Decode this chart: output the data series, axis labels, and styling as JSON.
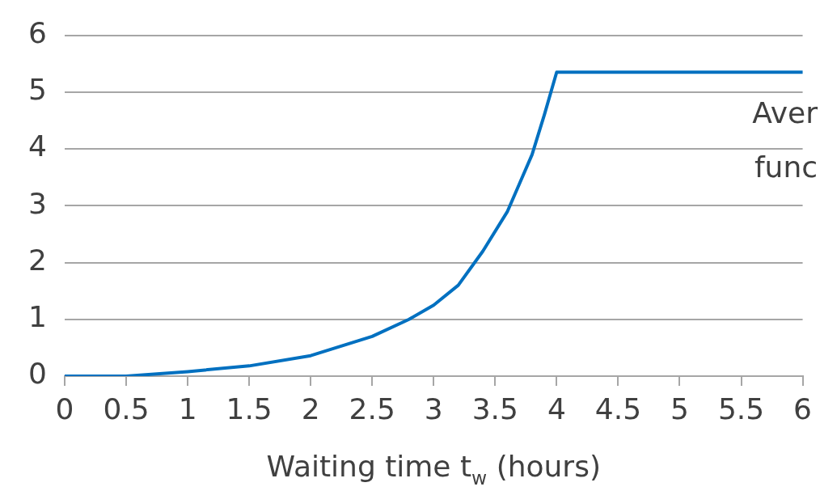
{
  "chart_data": {
    "type": "line",
    "xlabel": "Waiting time t$_{w}$ (hours)",
    "x": [
      0,
      0.5,
      1,
      1.5,
      2,
      2.5,
      2.8,
      3,
      3.2,
      3.4,
      3.6,
      3.7,
      3.8,
      3.9,
      4,
      6
    ],
    "series": [
      {
        "color": "#0070c0",
        "values": [
          0,
          0,
          0.08,
          0.18,
          0.36,
          0.7,
          1.0,
          1.25,
          1.6,
          2.2,
          2.9,
          3.4,
          3.9,
          4.6,
          5.35,
          5.35
        ]
      }
    ],
    "xlim": [
      0,
      6
    ],
    "xticks": [
      0,
      0.5,
      1,
      1.5,
      2,
      2.5,
      3,
      3.5,
      4,
      4.5,
      5,
      5.5,
      6
    ],
    "ylim": [
      0,
      6
    ],
    "yticks": [
      0,
      1,
      2,
      3,
      4,
      5,
      6
    ],
    "grid": "y",
    "legend": false,
    "marker": "none",
    "line_style": "solid",
    "annotations": [
      "Aver",
      "func"
    ]
  }
}
